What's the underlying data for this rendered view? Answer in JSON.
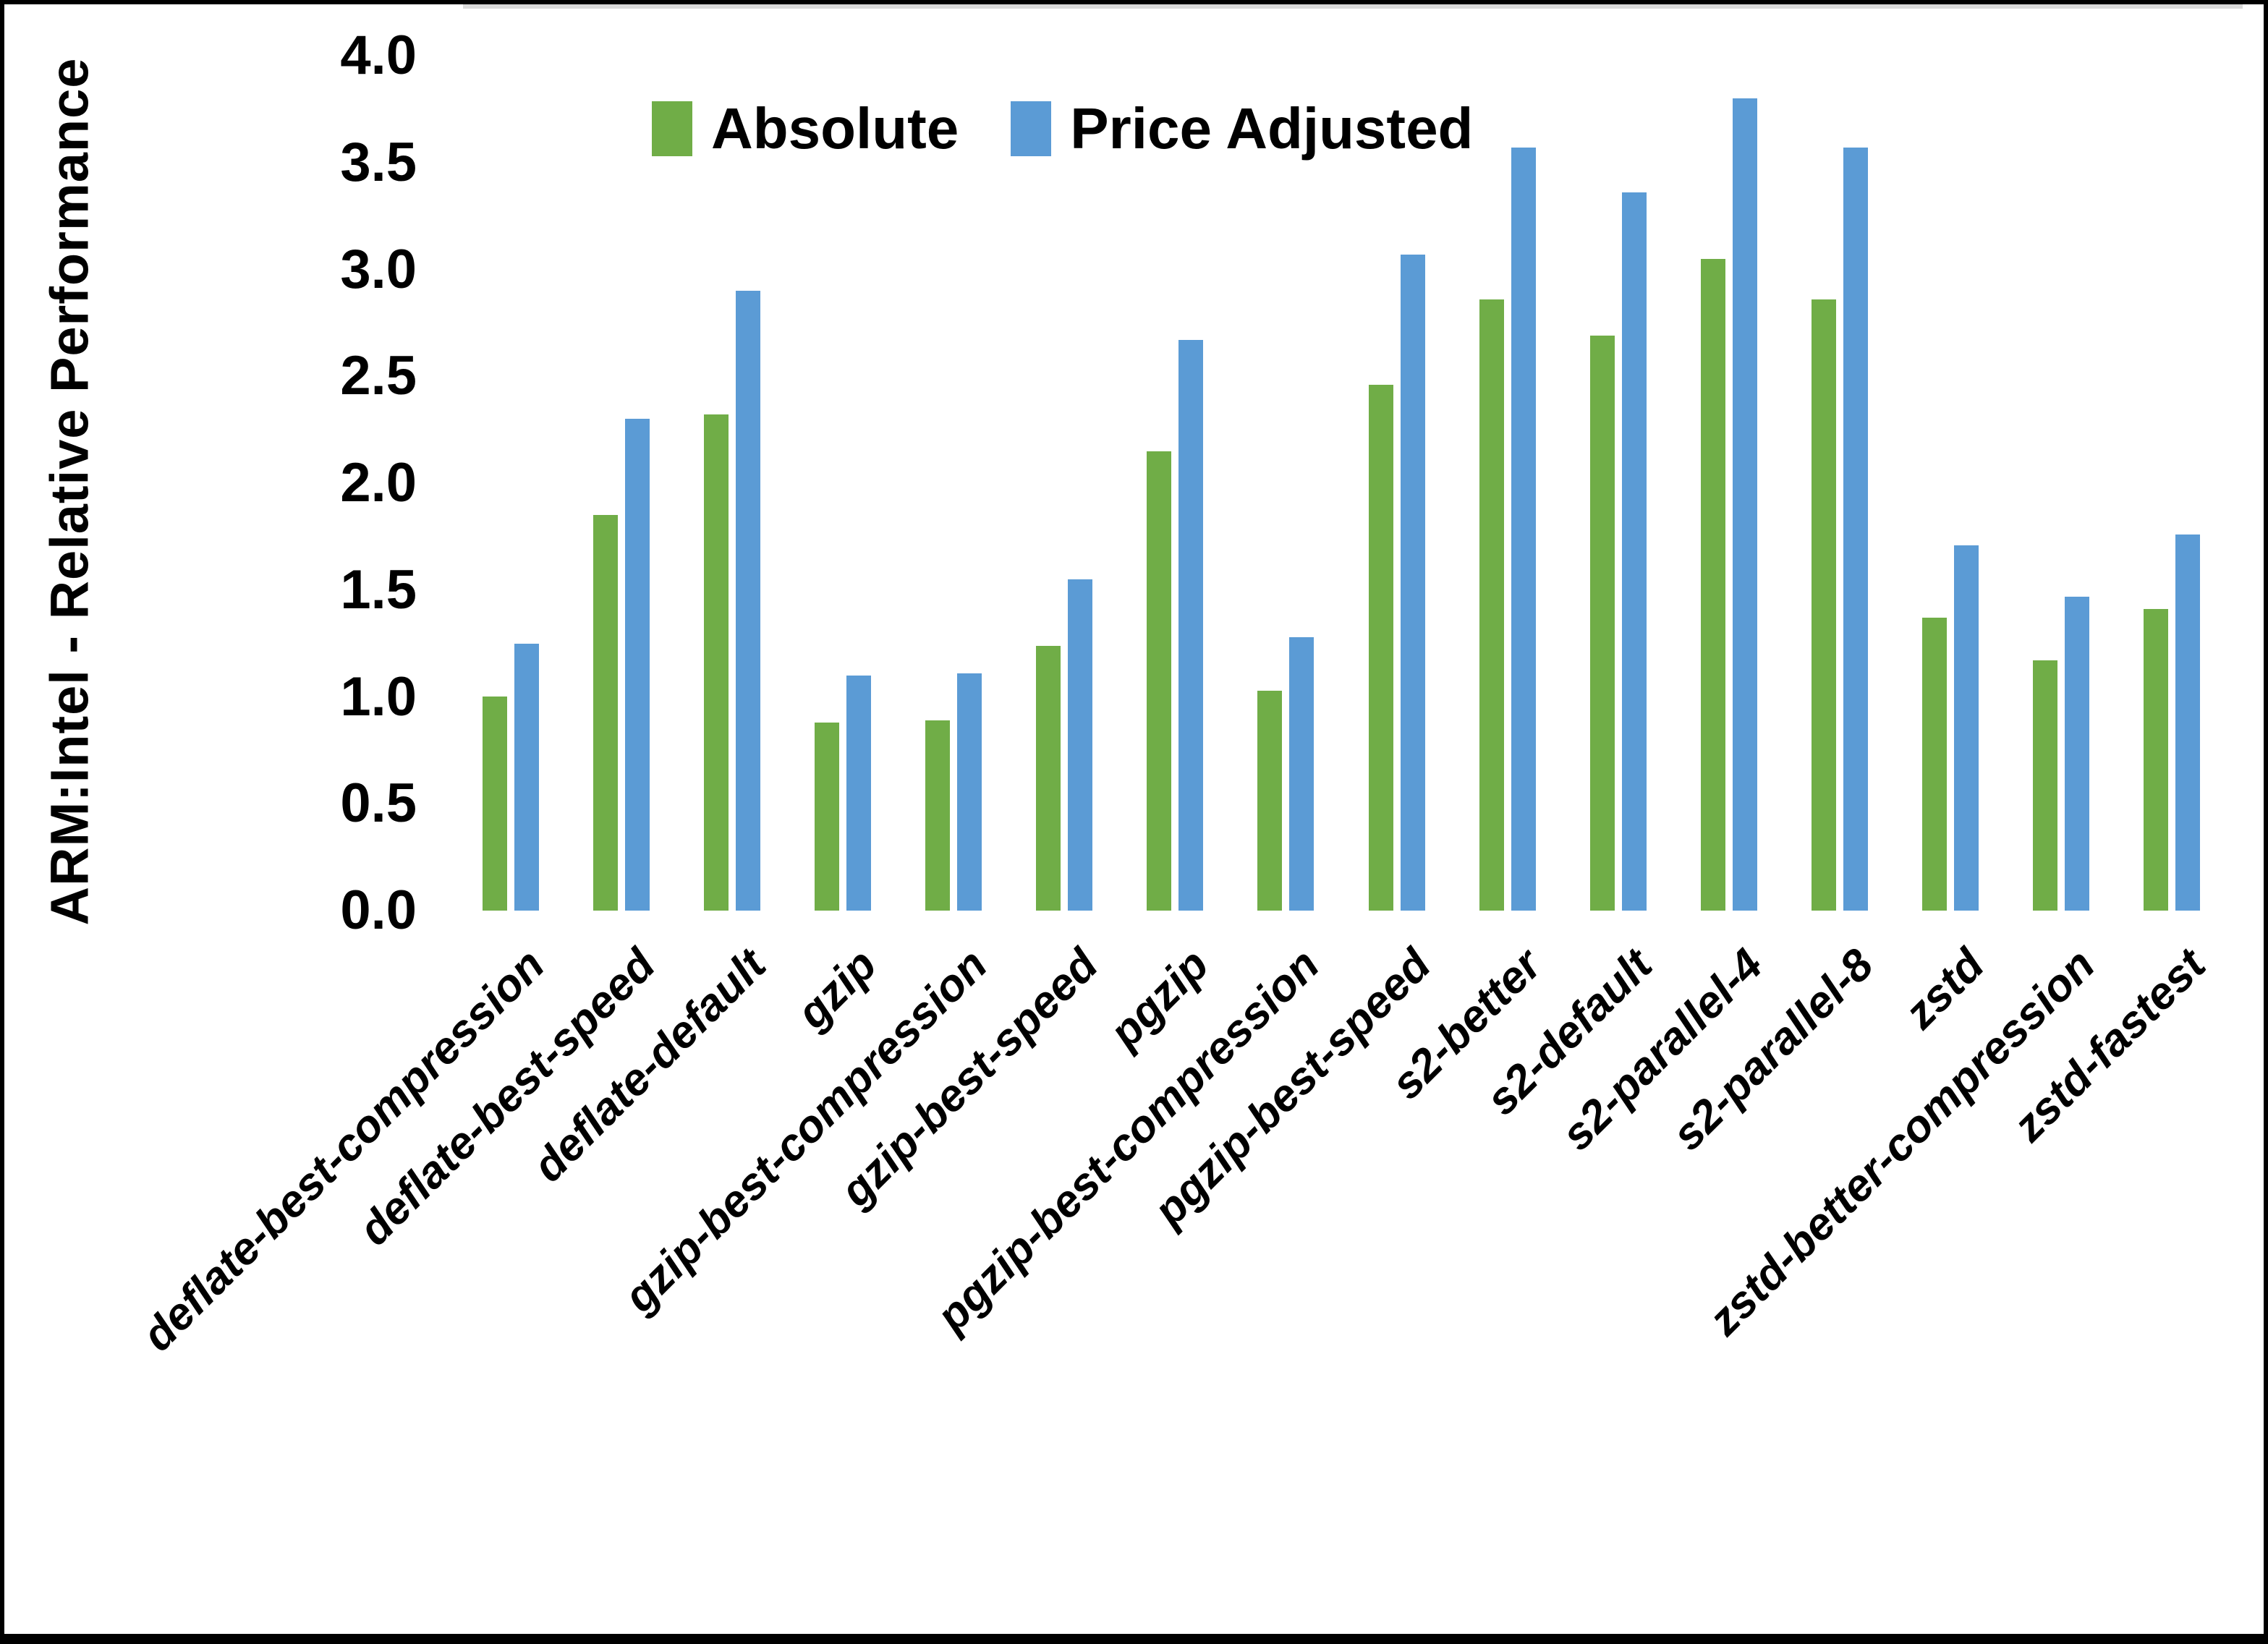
{
  "chart_data": {
    "type": "bar",
    "title": "",
    "xlabel": "",
    "ylabel": "ARM:Intel - Relative Performance",
    "ylim": [
      0.0,
      4.0
    ],
    "ytick_step": 0.5,
    "ytick_labels": [
      "0.0",
      "0.5",
      "1.0",
      "1.5",
      "2.0",
      "2.5",
      "3.0",
      "3.5",
      "4.0"
    ],
    "grid": false,
    "legend_position": "top-inside",
    "categories": [
      "deflate-best-compression",
      "deflate-best-speed",
      "deflate-default",
      "gzip",
      "gzip-best-compression",
      "gzip-best-speed",
      "pgzip",
      "pgzip-best-compression",
      "pgzip-best-speed",
      "s2-better",
      "s2-default",
      "s2-parallel-4",
      "s2-parallel-8",
      "zstd",
      "zstd-better-compression",
      "zstd-fastest"
    ],
    "series": [
      {
        "name": "Absolute",
        "color": "#70AD47",
        "values": [
          1.0,
          1.85,
          2.32,
          0.88,
          0.89,
          1.24,
          2.15,
          1.03,
          2.46,
          2.86,
          2.69,
          3.05,
          2.86,
          1.37,
          1.17,
          1.41
        ]
      },
      {
        "name": "Price Adjusted",
        "color": "#5B9BD5",
        "values": [
          1.25,
          2.3,
          2.9,
          1.1,
          1.11,
          1.55,
          2.67,
          1.28,
          3.07,
          3.57,
          3.36,
          3.8,
          3.57,
          1.71,
          1.47,
          1.76
        ]
      }
    ]
  },
  "colors": {
    "background": "#FFFFFF",
    "border": "#000000",
    "axis_line": "#D9D9D9",
    "text": "#000000"
  }
}
